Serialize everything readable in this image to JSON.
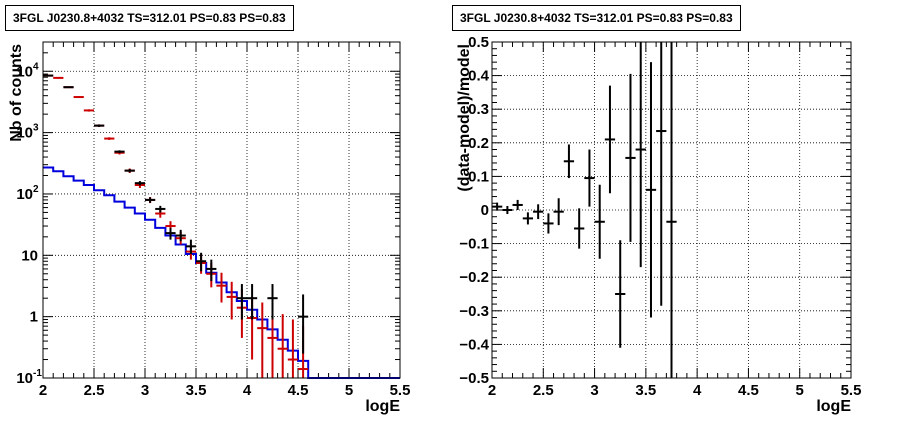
{
  "chart_data": [
    {
      "type": "line",
      "title": "3FGL J0230.8+4032 TS=312.01 PS=0.83 PS=0.83",
      "xlabel": "logE",
      "ylabel": "Nb of counts",
      "xlim": [
        2,
        5.5
      ],
      "ylim": [
        0.1,
        30000
      ],
      "yscale": "log",
      "grid": true,
      "x_ticks": [
        "2",
        "2.5",
        "3",
        "3.5",
        "4",
        "4.5",
        "5",
        "5.5"
      ],
      "y_ticks": [
        {
          "base": "10",
          "exp": "-1"
        },
        {
          "base": "1",
          "exp": ""
        },
        {
          "base": "10",
          "exp": ""
        },
        {
          "base": "10",
          "exp": "2"
        },
        {
          "base": "10",
          "exp": "3"
        },
        {
          "base": "10",
          "exp": "4"
        }
      ],
      "series": [
        {
          "color": "#cc0000",
          "style": "points-with-errors",
          "points": [
            {
              "x": 2.05,
              "y": 8500,
              "lo": 8300,
              "hi": 8700
            },
            {
              "x": 2.15,
              "y": 7800,
              "lo": 7600,
              "hi": 8000
            },
            {
              "x": 2.25,
              "y": 5500,
              "lo": 5350,
              "hi": 5650
            },
            {
              "x": 2.35,
              "y": 3800,
              "lo": 3680,
              "hi": 3920
            },
            {
              "x": 2.45,
              "y": 2300,
              "lo": 2200,
              "hi": 2400
            },
            {
              "x": 2.55,
              "y": 1300,
              "lo": 1240,
              "hi": 1360
            },
            {
              "x": 2.65,
              "y": 800,
              "lo": 760,
              "hi": 840
            },
            {
              "x": 2.75,
              "y": 470,
              "lo": 440,
              "hi": 500
            },
            {
              "x": 2.85,
              "y": 240,
              "lo": 220,
              "hi": 260
            },
            {
              "x": 2.95,
              "y": 140,
              "lo": 125,
              "hi": 155
            },
            {
              "x": 3.05,
              "y": 80,
              "lo": 71,
              "hi": 89
            },
            {
              "x": 3.15,
              "y": 48,
              "lo": 41,
              "hi": 55
            },
            {
              "x": 3.25,
              "y": 30,
              "lo": 25,
              "hi": 36
            },
            {
              "x": 3.35,
              "y": 19,
              "lo": 15,
              "hi": 24
            },
            {
              "x": 3.45,
              "y": 11.5,
              "lo": 8.5,
              "hi": 15
            },
            {
              "x": 3.55,
              "y": 7.5,
              "lo": 5,
              "hi": 10.5
            },
            {
              "x": 3.65,
              "y": 5,
              "lo": 3,
              "hi": 7.5
            },
            {
              "x": 3.75,
              "y": 3.2,
              "lo": 1.7,
              "hi": 5.2
            },
            {
              "x": 3.85,
              "y": 2.1,
              "lo": 0.9,
              "hi": 3.7
            },
            {
              "x": 3.95,
              "y": 1.4,
              "lo": 0.45,
              "hi": 2.8
            },
            {
              "x": 4.05,
              "y": 0.95,
              "lo": 0.2,
              "hi": 2.1
            },
            {
              "x": 4.15,
              "y": 0.65,
              "lo": 0.1,
              "hi": 1.7
            },
            {
              "x": 4.25,
              "y": 0.45,
              "lo": 0.1,
              "hi": 1.4
            },
            {
              "x": 4.35,
              "y": 0.3,
              "lo": 0.1,
              "hi": 1.1
            },
            {
              "x": 4.45,
              "y": 0.2,
              "lo": 0.1,
              "hi": 0.9
            },
            {
              "x": 4.55,
              "y": 0.14,
              "lo": 0.1,
              "hi": 0.7
            }
          ]
        },
        {
          "color": "#000000",
          "style": "points-with-errors",
          "points": [
            {
              "x": 2.05,
              "y": 8500,
              "lo": 8300,
              "hi": 8700
            },
            {
              "x": 2.25,
              "y": 5500,
              "lo": 5350,
              "hi": 5650
            },
            {
              "x": 2.55,
              "y": 1300,
              "lo": 1240,
              "hi": 1360
            },
            {
              "x": 2.75,
              "y": 490,
              "lo": 465,
              "hi": 515
            },
            {
              "x": 2.85,
              "y": 240,
              "lo": 225,
              "hi": 255
            },
            {
              "x": 2.95,
              "y": 150,
              "lo": 138,
              "hi": 162
            },
            {
              "x": 3.05,
              "y": 80,
              "lo": 72,
              "hi": 88
            },
            {
              "x": 3.15,
              "y": 57,
              "lo": 50,
              "hi": 64
            },
            {
              "x": 3.25,
              "y": 23,
              "lo": 18,
              "hi": 28
            },
            {
              "x": 3.35,
              "y": 21,
              "lo": 17,
              "hi": 26
            },
            {
              "x": 3.45,
              "y": 14,
              "lo": 10.5,
              "hi": 18
            },
            {
              "x": 3.55,
              "y": 8,
              "lo": 5.5,
              "hi": 11
            },
            {
              "x": 3.65,
              "y": 6,
              "lo": 3.8,
              "hi": 8.5
            },
            {
              "x": 3.95,
              "y": 2,
              "lo": 0.9,
              "hi": 3.4
            },
            {
              "x": 4.05,
              "y": 2,
              "lo": 0.9,
              "hi": 3.4
            },
            {
              "x": 4.25,
              "y": 2,
              "lo": 0.9,
              "hi": 3.4
            },
            {
              "x": 4.55,
              "y": 1,
              "lo": 0.25,
              "hi": 2.3
            }
          ]
        },
        {
          "color": "#0000dd",
          "style": "step",
          "edges": [
            2.0,
            2.1,
            2.2,
            2.3,
            2.4,
            2.5,
            2.6,
            2.7,
            2.8,
            2.9,
            3.0,
            3.1,
            3.2,
            3.3,
            3.4,
            3.5,
            3.6,
            3.7,
            3.8,
            3.9,
            4.0,
            4.1,
            4.2,
            4.3,
            4.4,
            4.5,
            4.6,
            5.5
          ],
          "values": [
            270,
            235,
            195,
            165,
            140,
            115,
            95,
            75,
            60,
            48,
            38,
            28,
            21,
            15,
            10.5,
            7.5,
            5.2,
            3.6,
            2.5,
            1.8,
            1.3,
            0.9,
            0.62,
            0.42,
            0.28,
            0.19,
            0.1
          ]
        }
      ]
    },
    {
      "type": "scatter",
      "title": "3FGL J0230.8+4032 TS=312.01 PS=0.83 PS=0.83",
      "xlabel": "logE",
      "ylabel": "(data-model)/model",
      "xlim": [
        2,
        5.5
      ],
      "ylim": [
        -0.5,
        0.5
      ],
      "grid": true,
      "x_ticks": [
        "2",
        "2.5",
        "3",
        "3.5",
        "4",
        "4.5",
        "5",
        "5.5"
      ],
      "y_ticks": [
        "−0.5",
        "−0.4",
        "−0.3",
        "−0.2",
        "−0.1",
        "0",
        "0.1",
        "0.2",
        "0.3",
        "0.4",
        "0.5"
      ],
      "series": [
        {
          "color": "#000000",
          "points": [
            {
              "x": 2.05,
              "y": 0.01,
              "err": 0.012
            },
            {
              "x": 2.15,
              "y": 0.0,
              "err": 0.012
            },
            {
              "x": 2.25,
              "y": 0.015,
              "err": 0.015
            },
            {
              "x": 2.35,
              "y": -0.025,
              "err": 0.018
            },
            {
              "x": 2.45,
              "y": -0.005,
              "err": 0.022
            },
            {
              "x": 2.55,
              "y": -0.04,
              "err": 0.03
            },
            {
              "x": 2.65,
              "y": -0.005,
              "err": 0.04
            },
            {
              "x": 2.75,
              "y": 0.145,
              "err": 0.05
            },
            {
              "x": 2.85,
              "y": -0.055,
              "err": 0.06
            },
            {
              "x": 2.95,
              "y": 0.095,
              "err": 0.085
            },
            {
              "x": 3.05,
              "y": -0.035,
              "err": 0.11
            },
            {
              "x": 3.15,
              "y": 0.21,
              "err": 0.16
            },
            {
              "x": 3.25,
              "y": -0.25,
              "err": 0.16
            },
            {
              "x": 3.35,
              "y": 0.155,
              "err": 0.25
            },
            {
              "x": 3.45,
              "y": 0.18,
              "err": 0.35
            },
            {
              "x": 3.55,
              "y": 0.06,
              "err": 0.38
            },
            {
              "x": 3.65,
              "y": 0.235,
              "err": 0.52
            },
            {
              "x": 3.75,
              "y": -0.035,
              "err": 0.6
            }
          ]
        }
      ]
    }
  ]
}
